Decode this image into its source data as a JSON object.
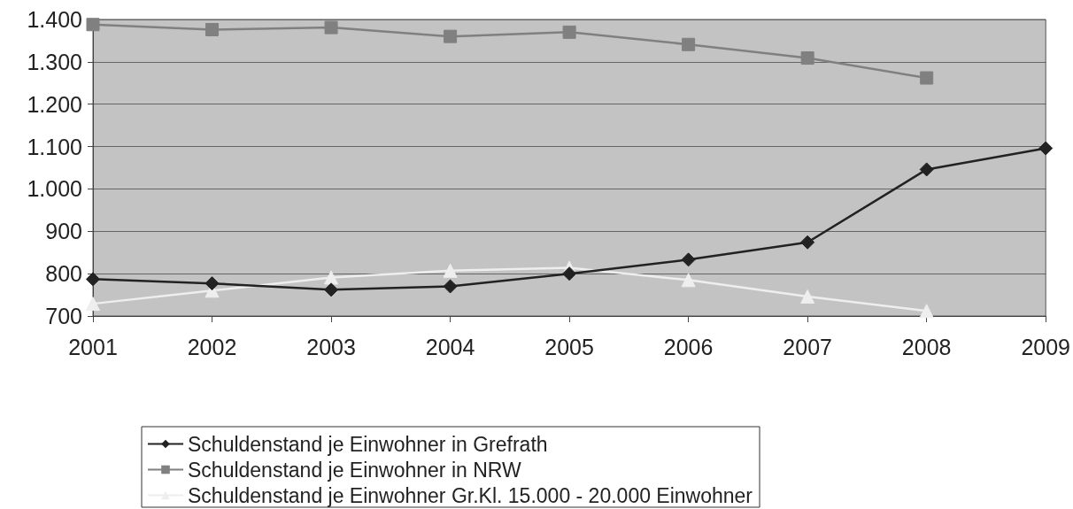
{
  "chart_data": {
    "type": "line",
    "categories": [
      "2001",
      "2002",
      "2003",
      "2004",
      "2005",
      "2006",
      "2007",
      "2008",
      "2009"
    ],
    "series": [
      {
        "name": "Schuldenstand je Einwohner in Grefrath",
        "color": "#222222",
        "marker": "diamond",
        "values": [
          787,
          777,
          762,
          770,
          800,
          833,
          874,
          1046,
          1096
        ]
      },
      {
        "name": "Schuldenstand je Einwohner in NRW",
        "color": "#808080",
        "marker": "square",
        "values": [
          1388,
          1376,
          1381,
          1360,
          1370,
          1341,
          1309,
          1262,
          null
        ]
      },
      {
        "name": "Schuldenstand je Einwohner Gr.Kl. 15.000 - 20.000 Einwohner",
        "color": "#eeeeee",
        "marker": "triangle",
        "values": [
          729,
          760,
          791,
          807,
          814,
          785,
          746,
          712,
          null
        ]
      }
    ],
    "ylim": [
      700,
      1400
    ],
    "yticks": [
      700,
      800,
      900,
      {
        "value": 1000,
        "label": "1.000"
      },
      {
        "value": 1100,
        "label": "1.100"
      },
      {
        "value": 1200,
        "label": "1.200"
      },
      {
        "value": 1300,
        "label": "1.300"
      },
      {
        "value": 1400,
        "label": "1.400"
      }
    ],
    "grid": "y",
    "legend": "bottom",
    "line_style": "solid"
  }
}
